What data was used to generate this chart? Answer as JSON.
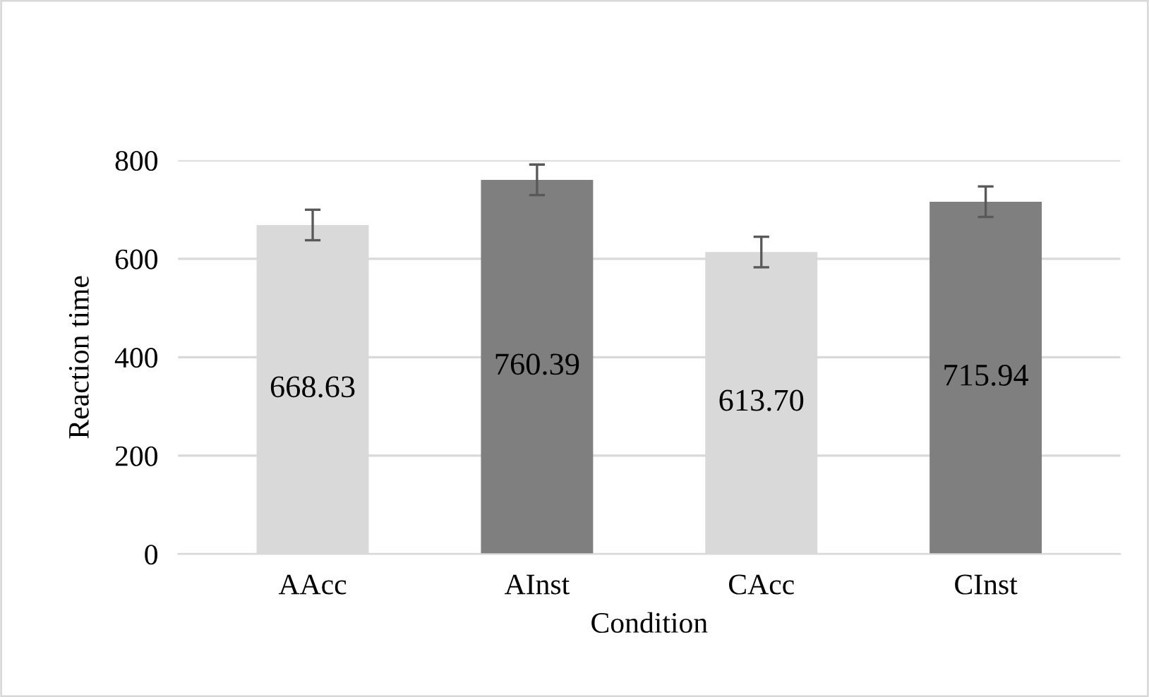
{
  "chart_data": {
    "type": "bar",
    "xlabel": "Condition",
    "ylabel": "Reaction time",
    "categories": [
      "AAcc",
      "AInst",
      "CAcc",
      "CInst"
    ],
    "values": [
      668.63,
      760.39,
      613.7,
      715.94
    ],
    "colors": [
      "#d9d9d9",
      "#7f7f7f",
      "#d9d9d9",
      "#7f7f7f"
    ],
    "value_labels": [
      "668.63",
      "760.39",
      "613.70",
      "715.94"
    ],
    "errors": [
      31,
      31,
      31,
      31
    ],
    "ylim": [
      0,
      800
    ],
    "yticks": [
      0,
      200,
      400,
      600,
      800
    ],
    "grid": "y"
  }
}
